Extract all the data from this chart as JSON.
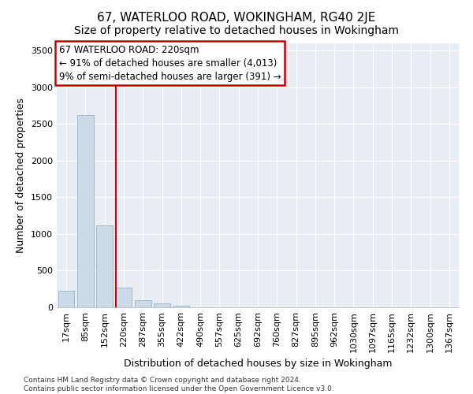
{
  "title": "67, WATERLOO ROAD, WOKINGHAM, RG40 2JE",
  "subtitle": "Size of property relative to detached houses in Wokingham",
  "xlabel": "Distribution of detached houses by size in Wokingham",
  "ylabel": "Number of detached properties",
  "footer_line1": "Contains HM Land Registry data © Crown copyright and database right 2024.",
  "footer_line2": "Contains public sector information licensed under the Open Government Licence v3.0.",
  "annotation_line1": "67 WATERLOO ROAD: 220sqm",
  "annotation_line2": "← 91% of detached houses are smaller (4,013)",
  "annotation_line3": "9% of semi-detached houses are larger (391) →",
  "bar_color": "#ccd9e8",
  "bar_edge_color": "#8aaabf",
  "marker_color": "#cc0000",
  "categories": [
    "17sqm",
    "85sqm",
    "152sqm",
    "220sqm",
    "287sqm",
    "355sqm",
    "422sqm",
    "490sqm",
    "557sqm",
    "625sqm",
    "692sqm",
    "760sqm",
    "827sqm",
    "895sqm",
    "962sqm",
    "1030sqm",
    "1097sqm",
    "1165sqm",
    "1232sqm",
    "1300sqm",
    "1367sqm"
  ],
  "values": [
    230,
    2620,
    1120,
    270,
    95,
    50,
    20,
    0,
    0,
    0,
    0,
    0,
    0,
    0,
    0,
    0,
    0,
    0,
    0,
    0,
    0
  ],
  "ylim": [
    0,
    3600
  ],
  "yticks": [
    0,
    500,
    1000,
    1500,
    2000,
    2500,
    3000,
    3500
  ],
  "marker_bar_index": 3,
  "plot_bg_color": "#e8eef4",
  "grid_color": "#ffffff",
  "title_fontsize": 11,
  "subtitle_fontsize": 10,
  "ylabel_fontsize": 9,
  "xlabel_fontsize": 9,
  "tick_fontsize": 8,
  "annot_fontsize": 8.5,
  "footer_fontsize": 6.5
}
